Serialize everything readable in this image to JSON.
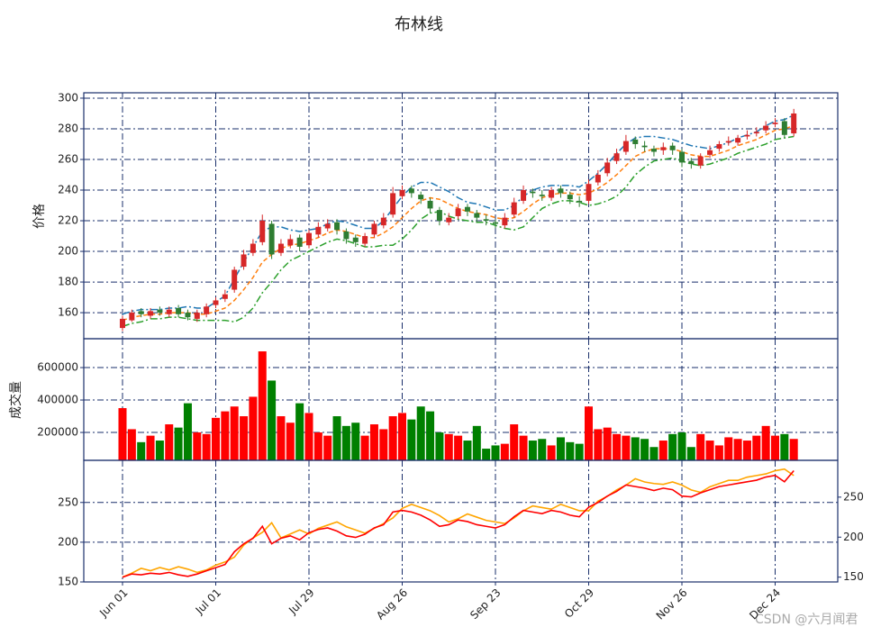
{
  "chart_data": [
    {
      "type": "candlestick",
      "title": "布林线",
      "ylabel": "价格",
      "watermark": "CSDN @六月闻君",
      "categories": [
        "Jun 01",
        null,
        null,
        null,
        null,
        null,
        null,
        null,
        null,
        null,
        "Jul 01",
        null,
        null,
        null,
        null,
        null,
        null,
        null,
        null,
        null,
        "Jul 29",
        null,
        null,
        null,
        null,
        null,
        null,
        null,
        null,
        null,
        "Aug 26",
        null,
        null,
        null,
        null,
        null,
        null,
        null,
        null,
        null,
        "Sep 23",
        null,
        null,
        null,
        null,
        null,
        null,
        null,
        null,
        null,
        "Oct 29",
        null,
        null,
        null,
        null,
        null,
        null,
        null,
        null,
        null,
        "Nov 26",
        null,
        null,
        null,
        null,
        null,
        null,
        null,
        null,
        null,
        "Dec 24",
        null,
        null
      ],
      "open": [
        150,
        155,
        161,
        158,
        162,
        159,
        163,
        160,
        156,
        159,
        165,
        169,
        175,
        190,
        199,
        206,
        218,
        199,
        204,
        209,
        204,
        211,
        215,
        219,
        213,
        209,
        205,
        211,
        217,
        224,
        236,
        241,
        237,
        233,
        227,
        219,
        223,
        229,
        225,
        221,
        219,
        217,
        224,
        233,
        239,
        237,
        235,
        241,
        237,
        233,
        233,
        245,
        251,
        259,
        265,
        273,
        269,
        267,
        266,
        269,
        265,
        259,
        256,
        263,
        267,
        271,
        271,
        275,
        277,
        279,
        283,
        285,
        277
      ],
      "high": [
        158,
        162,
        163,
        163,
        164,
        164,
        165,
        162,
        162,
        166,
        170,
        175,
        190,
        201,
        208,
        224,
        220,
        208,
        211,
        211,
        214,
        219,
        221,
        221,
        215,
        211,
        212,
        220,
        225,
        242,
        243,
        243,
        239,
        235,
        229,
        225,
        231,
        231,
        227,
        224,
        221,
        225,
        235,
        243,
        241,
        240,
        242,
        243,
        239,
        236,
        247,
        253,
        261,
        267,
        276,
        275,
        272,
        269,
        271,
        271,
        267,
        261,
        264,
        269,
        272,
        275,
        276,
        279,
        281,
        285,
        287,
        287,
        293
      ],
      "low": [
        148,
        154,
        157,
        156,
        158,
        157,
        157,
        155,
        154,
        157,
        163,
        167,
        173,
        188,
        197,
        204,
        195,
        197,
        202,
        200,
        202,
        209,
        213,
        211,
        205,
        203,
        203,
        209,
        215,
        222,
        234,
        235,
        231,
        225,
        217,
        217,
        221,
        223,
        219,
        217,
        215,
        215,
        222,
        231,
        235,
        233,
        233,
        235,
        231,
        229,
        231,
        243,
        249,
        257,
        263,
        267,
        265,
        262,
        263,
        263,
        255,
        254,
        254,
        261,
        265,
        269,
        269,
        273,
        275,
        277,
        281,
        274,
        275
      ],
      "close": [
        156,
        160,
        159,
        161,
        160,
        162,
        159,
        157,
        160,
        164,
        168,
        172,
        188,
        198,
        205,
        220,
        198,
        205,
        208,
        203,
        212,
        216,
        218,
        214,
        208,
        206,
        210,
        218,
        222,
        238,
        240,
        238,
        234,
        228,
        220,
        222,
        228,
        226,
        222,
        220,
        218,
        222,
        232,
        240,
        238,
        236,
        240,
        238,
        234,
        232,
        244,
        250,
        258,
        264,
        272,
        270,
        268,
        265,
        268,
        266,
        258,
        257,
        262,
        266,
        270,
        272,
        274,
        276,
        278,
        282,
        284,
        276,
        290
      ],
      "up_color": "#d62728",
      "down_color": "#2e7d32",
      "series": [
        {
          "color": "#1f77b4",
          "values": [
            159,
            161,
            162,
            162,
            162,
            163,
            163,
            164,
            163,
            163,
            167,
            171,
            182,
            193,
            203,
            213,
            216,
            216,
            214,
            213,
            214,
            215,
            218,
            220,
            219,
            217,
            215,
            215,
            220,
            228,
            236,
            242,
            245,
            245,
            242,
            239,
            235,
            232,
            231,
            229,
            227,
            227,
            230,
            236,
            240,
            242,
            243,
            243,
            243,
            242,
            246,
            251,
            257,
            264,
            270,
            274,
            275,
            275,
            274,
            273,
            271,
            269,
            268,
            267,
            269,
            271,
            274,
            276,
            278,
            282,
            285,
            286,
            289
          ]
        },
        {
          "color": "#ff7f0e",
          "values": [
            155,
            157,
            158,
            159,
            159,
            160,
            160,
            160,
            159,
            159,
            161,
            163,
            168,
            175,
            183,
            193,
            198,
            202,
            204,
            205,
            207,
            209,
            212,
            214,
            213,
            211,
            209,
            209,
            212,
            216,
            222,
            228,
            233,
            235,
            234,
            231,
            228,
            226,
            225,
            224,
            222,
            221,
            222,
            226,
            231,
            235,
            237,
            238,
            238,
            237,
            238,
            241,
            245,
            250,
            256,
            262,
            265,
            267,
            267,
            267,
            265,
            263,
            262,
            262,
            264,
            266,
            269,
            271,
            273,
            276,
            279,
            280,
            282
          ]
        },
        {
          "color": "#2ca02c",
          "values": [
            151,
            153,
            154,
            156,
            156,
            157,
            157,
            156,
            155,
            155,
            155,
            155,
            154,
            157,
            163,
            173,
            180,
            188,
            194,
            197,
            200,
            203,
            206,
            208,
            207,
            205,
            203,
            203,
            204,
            204,
            208,
            214,
            221,
            225,
            226,
            223,
            221,
            220,
            219,
            219,
            217,
            215,
            214,
            216,
            222,
            228,
            231,
            233,
            233,
            232,
            230,
            231,
            233,
            236,
            242,
            250,
            255,
            259,
            260,
            261,
            259,
            257,
            256,
            257,
            259,
            261,
            264,
            266,
            268,
            270,
            273,
            274,
            275
          ]
        }
      ],
      "ylim": [
        143,
        303.5
      ],
      "yticks": [
        160,
        180,
        200,
        220,
        240,
        260,
        280,
        300
      ],
      "grid": true
    },
    {
      "type": "bar",
      "ylabel": "成交量",
      "up_color": "red",
      "down_color": "green",
      "values": [
        350000,
        220000,
        140000,
        180000,
        150000,
        250000,
        230000,
        380000,
        200000,
        190000,
        290000,
        330000,
        360000,
        300000,
        420000,
        700000,
        520000,
        300000,
        260000,
        380000,
        320000,
        200000,
        180000,
        300000,
        240000,
        260000,
        180000,
        250000,
        220000,
        300000,
        320000,
        280000,
        360000,
        330000,
        200000,
        190000,
        180000,
        150000,
        240000,
        100000,
        120000,
        130000,
        250000,
        180000,
        150000,
        160000,
        120000,
        170000,
        140000,
        130000,
        360000,
        220000,
        230000,
        190000,
        180000,
        170000,
        160000,
        110000,
        150000,
        190000,
        200000,
        110000,
        190000,
        150000,
        120000,
        170000,
        160000,
        150000,
        180000,
        240000,
        180000,
        190000,
        160000
      ],
      "ylim": [
        28000,
        778000
      ],
      "yticks": [
        200000,
        400000,
        600000
      ],
      "grid": true
    },
    {
      "type": "line",
      "series": [
        {
          "color": "orange",
          "axis": "y2",
          "values": [
            150,
            155,
            161,
            158,
            162,
            159,
            163,
            160,
            156,
            159,
            165,
            169,
            175,
            190,
            199,
            206,
            218,
            199,
            204,
            209,
            204,
            211,
            215,
            219,
            213,
            209,
            205,
            211,
            217,
            224,
            236,
            241,
            237,
            233,
            227,
            219,
            223,
            229,
            225,
            221,
            219,
            217,
            224,
            233,
            239,
            237,
            235,
            241,
            237,
            233,
            233,
            245,
            251,
            259,
            265,
            273,
            269,
            267,
            266,
            269,
            265,
            259,
            256,
            263,
            267,
            271,
            271,
            275,
            277,
            279,
            283,
            285,
            277
          ]
        },
        {
          "color": "red",
          "values": [
            156,
            160,
            159,
            161,
            160,
            162,
            159,
            157,
            160,
            164,
            168,
            172,
            188,
            198,
            205,
            220,
            198,
            205,
            208,
            203,
            212,
            216,
            218,
            214,
            208,
            206,
            210,
            218,
            222,
            238,
            240,
            238,
            234,
            228,
            220,
            222,
            228,
            226,
            222,
            220,
            218,
            222,
            232,
            240,
            238,
            236,
            240,
            238,
            234,
            232,
            244,
            250,
            258,
            264,
            272,
            270,
            268,
            265,
            268,
            266,
            258,
            257,
            262,
            266,
            270,
            272,
            274,
            276,
            278,
            282,
            284,
            276,
            290
          ]
        }
      ],
      "ylim": [
        150,
        303
      ],
      "yticks": [
        150,
        200,
        250
      ],
      "y2lim": [
        144,
        296
      ],
      "y2ticks": [
        150,
        200,
        250
      ],
      "grid": true
    }
  ]
}
